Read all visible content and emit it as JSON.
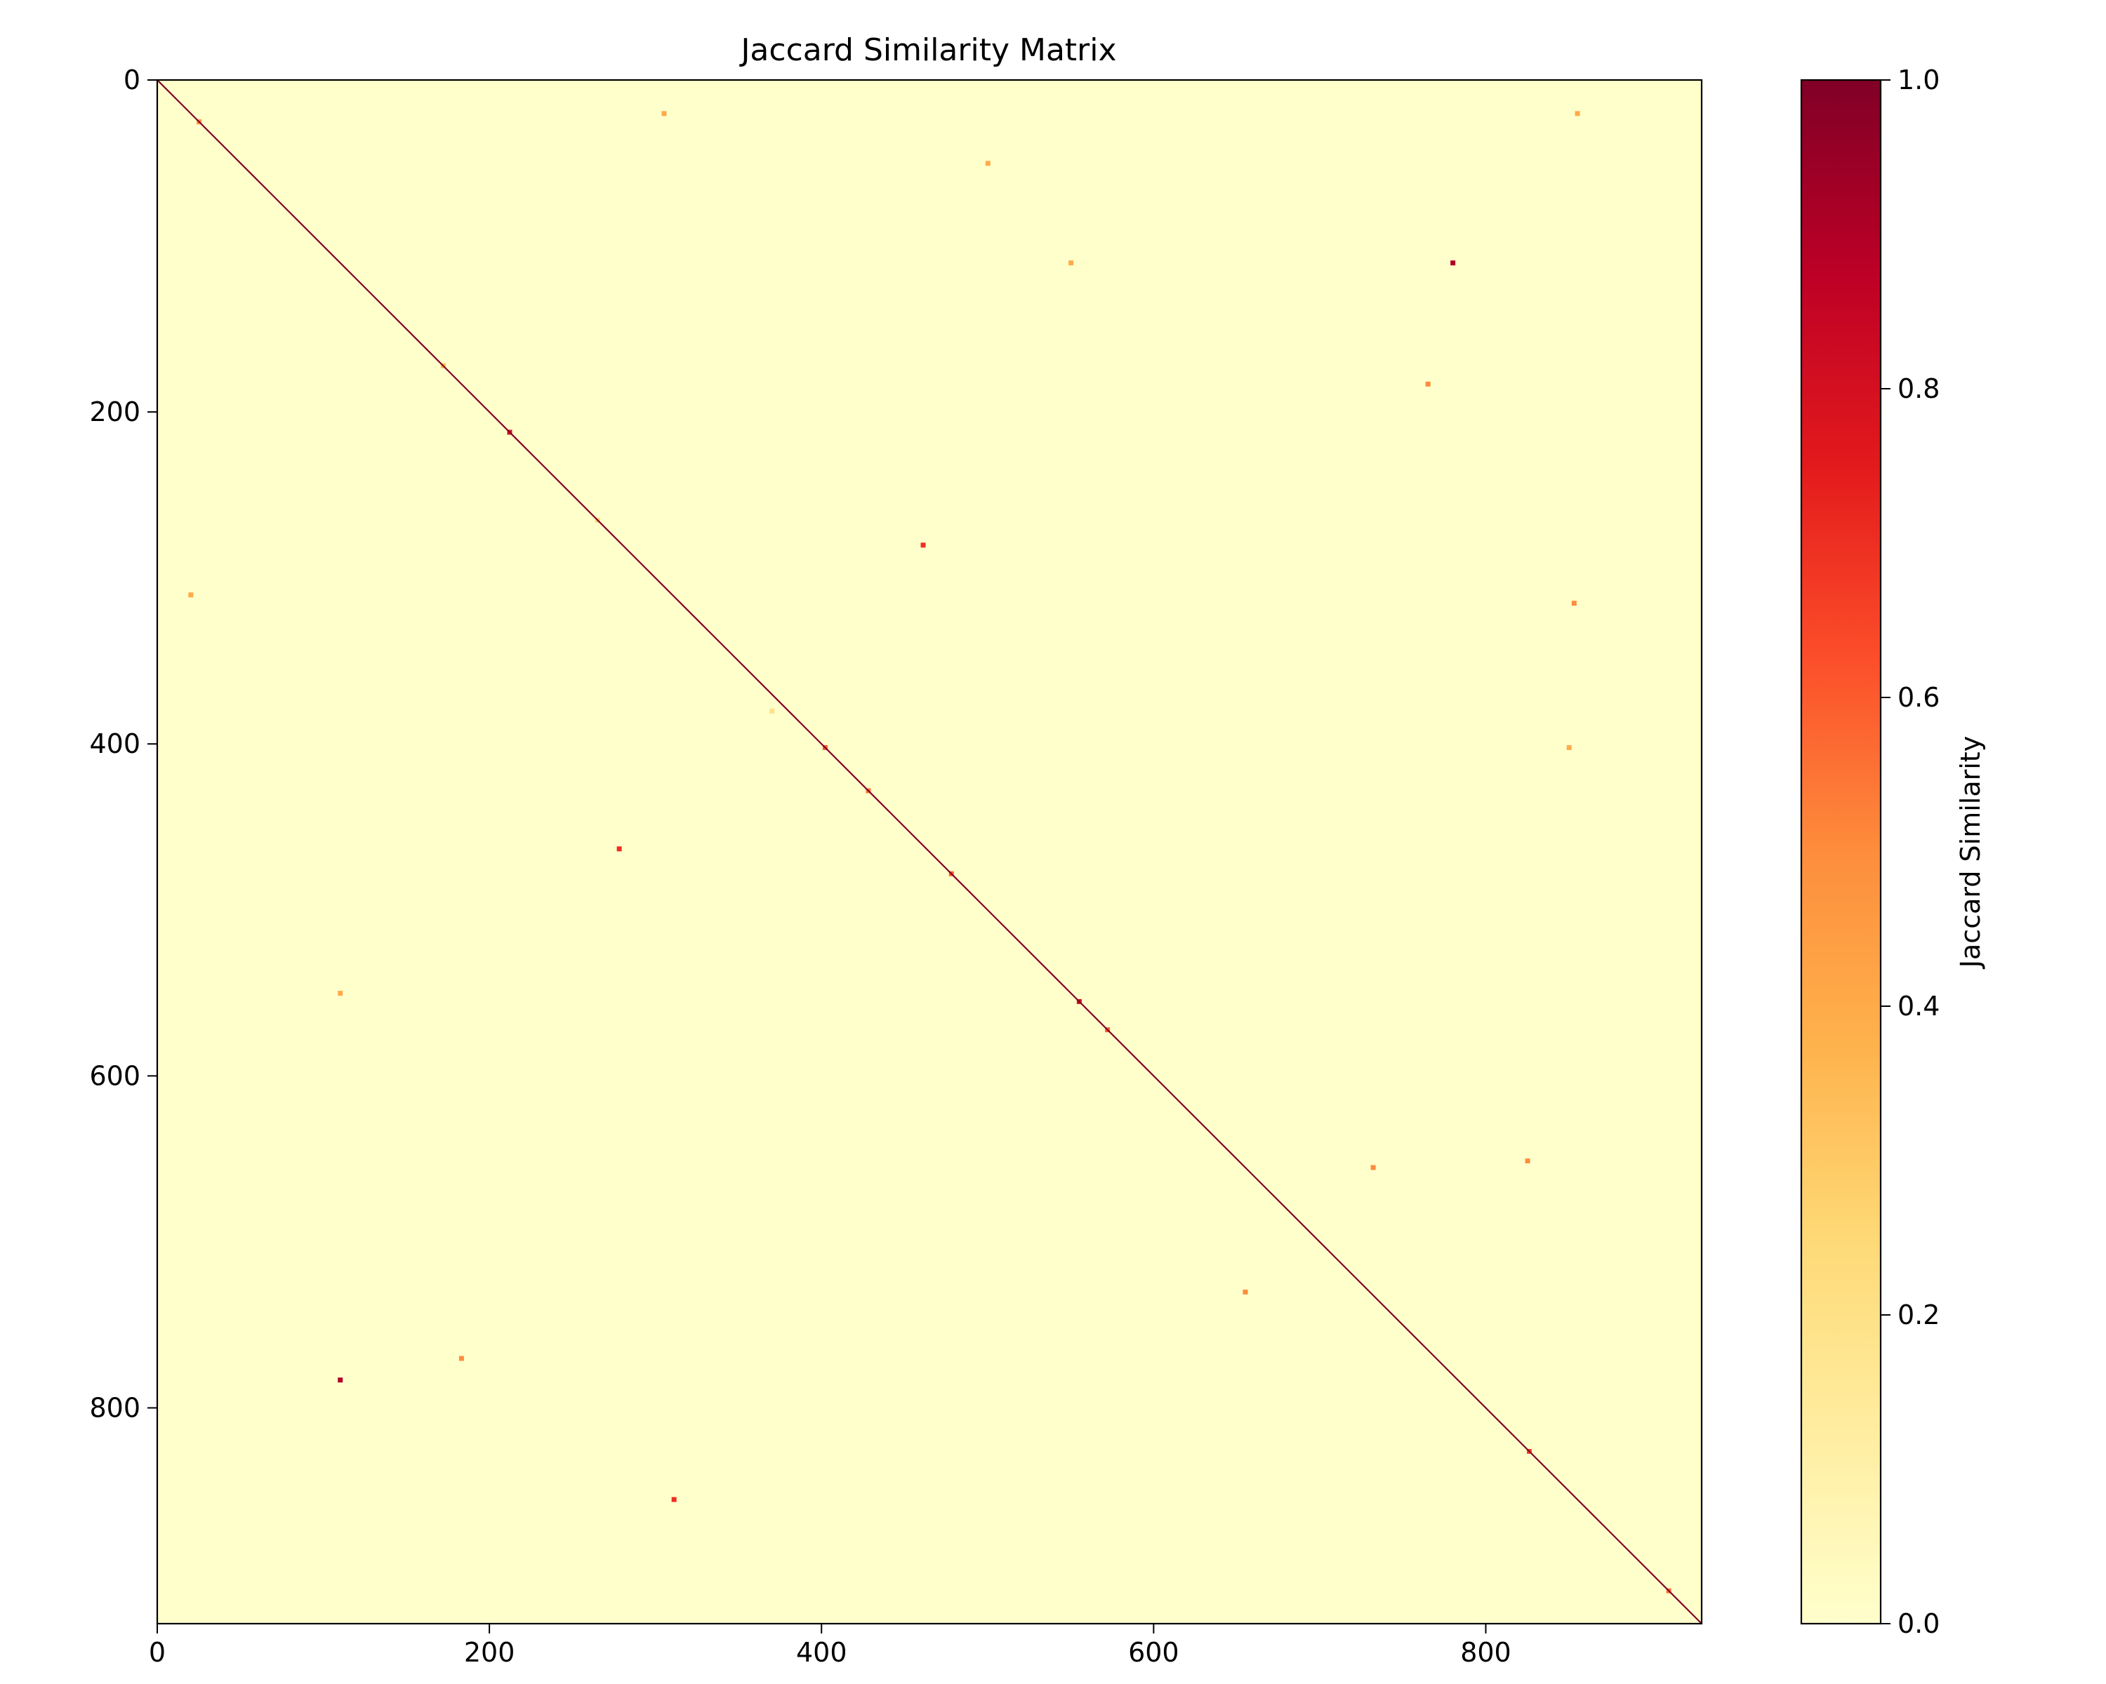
{
  "chart_data": {
    "type": "heatmap",
    "title": "Jaccard Similarity Matrix",
    "matrix_size": 930,
    "xlim": [
      0,
      930
    ],
    "ylim": [
      930,
      0
    ],
    "x_ticks": [
      0,
      200,
      400,
      600,
      800
    ],
    "y_ticks": [
      0,
      200,
      400,
      600,
      800
    ],
    "colorbar": {
      "label": "Jaccard Similarity",
      "range": [
        0.0,
        1.0
      ],
      "ticks": [
        "0.0",
        "0.2",
        "0.4",
        "0.6",
        "0.8",
        "1.0"
      ],
      "colormap": "YlOrRd",
      "stops": [
        "#ffffcc",
        "#ffeda0",
        "#fed976",
        "#feb24c",
        "#fd8d3c",
        "#fc4e2a",
        "#e31a1c",
        "#bd0026",
        "#800026"
      ]
    },
    "diagonal_value": 1.0,
    "background_value": 0.0,
    "highlights": [
      {
        "row": 25,
        "col": 25,
        "value": 0.5
      },
      {
        "row": 172,
        "col": 172,
        "value": 0.35
      },
      {
        "row": 212,
        "col": 212,
        "value": 0.8
      },
      {
        "row": 265,
        "col": 265,
        "value": 0.25
      },
      {
        "row": 380,
        "col": 370,
        "value": 0.2
      },
      {
        "row": 402,
        "col": 402,
        "value": 0.6
      },
      {
        "row": 428,
        "col": 428,
        "value": 0.55
      },
      {
        "row": 478,
        "col": 478,
        "value": 0.6
      },
      {
        "row": 555,
        "col": 555,
        "value": 0.8
      },
      {
        "row": 572,
        "col": 572,
        "value": 0.6
      },
      {
        "row": 826,
        "col": 826,
        "value": 0.65
      },
      {
        "row": 910,
        "col": 910,
        "value": 0.55
      },
      {
        "row": 110,
        "col": 780,
        "value": 0.9
      },
      {
        "row": 783,
        "col": 110,
        "value": 0.9
      },
      {
        "row": 855,
        "col": 311,
        "value": 0.7
      },
      {
        "row": 463,
        "col": 278,
        "value": 0.7
      },
      {
        "row": 280,
        "col": 461,
        "value": 0.7
      },
      {
        "row": 183,
        "col": 765,
        "value": 0.5
      },
      {
        "row": 315,
        "col": 853,
        "value": 0.5
      },
      {
        "row": 651,
        "col": 825,
        "value": 0.5
      },
      {
        "row": 402,
        "col": 850,
        "value": 0.4
      },
      {
        "row": 770,
        "col": 183,
        "value": 0.5
      },
      {
        "row": 20,
        "col": 855,
        "value": 0.4
      },
      {
        "row": 110,
        "col": 550,
        "value": 0.4
      },
      {
        "row": 550,
        "col": 110,
        "value": 0.4
      },
      {
        "row": 730,
        "col": 655,
        "value": 0.5
      },
      {
        "row": 655,
        "col": 732,
        "value": 0.5
      },
      {
        "row": 50,
        "col": 500,
        "value": 0.4
      },
      {
        "row": 310,
        "col": 20,
        "value": 0.4
      },
      {
        "row": 20,
        "col": 305,
        "value": 0.4
      }
    ]
  }
}
